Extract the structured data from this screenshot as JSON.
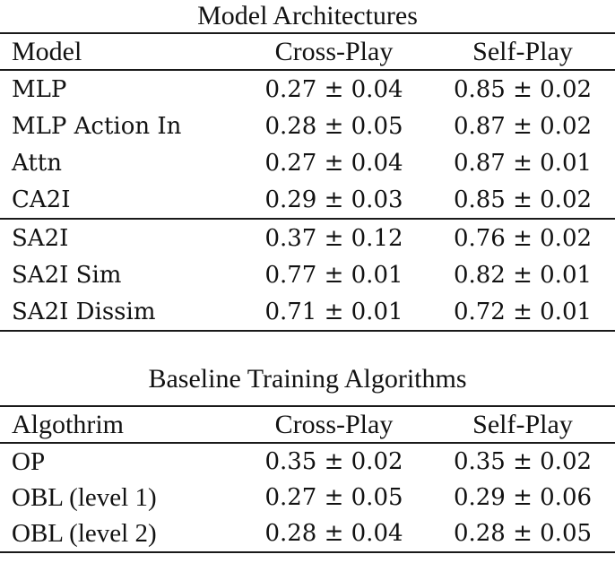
{
  "page": {
    "background": "#ffffff",
    "text_color": "#121212",
    "rule_color": "#1a1a1a"
  },
  "tables": [
    {
      "title": "Model Architectures",
      "columns": [
        "Model",
        "Cross-Play",
        "Self-Play"
      ],
      "groups": [
        {
          "rows": [
            {
              "label": "MLP",
              "cross_play": "0.27 ± 0.04",
              "self_play": "0.85 ± 0.02"
            },
            {
              "label": "MLP Action In",
              "cross_play": "0.28 ± 0.05",
              "self_play": "0.87 ± 0.02"
            },
            {
              "label": "Attn",
              "cross_play": "0.27 ± 0.04",
              "self_play": "0.87 ± 0.01"
            },
            {
              "label": "CA2I",
              "cross_play": "0.29 ± 0.03",
              "self_play": "0.85 ± 0.02"
            }
          ]
        },
        {
          "rows": [
            {
              "label": "SA2I",
              "cross_play": "0.37 ± 0.12",
              "self_play": "0.76 ± 0.02"
            },
            {
              "label": "SA2I Sim",
              "cross_play": "0.77 ± 0.01",
              "self_play": "0.82 ± 0.01"
            },
            {
              "label": "SA2I Dissim",
              "cross_play": "0.71 ± 0.01",
              "self_play": "0.72 ± 0.01"
            }
          ]
        }
      ]
    },
    {
      "title": "Baseline Training Algorithms",
      "columns": [
        "Algothrim",
        "Cross-Play",
        "Self-Play"
      ],
      "groups": [
        {
          "rows": [
            {
              "label": "OP",
              "cross_play": "0.35 ± 0.02",
              "self_play": "0.35 ± 0.02"
            },
            {
              "label": "OBL (level 1)",
              "cross_play": "0.27 ± 0.05",
              "self_play": "0.29 ± 0.06"
            },
            {
              "label": "OBL (level 2)",
              "cross_play": "0.28 ± 0.04",
              "self_play": "0.28 ± 0.05"
            }
          ]
        }
      ]
    }
  ]
}
